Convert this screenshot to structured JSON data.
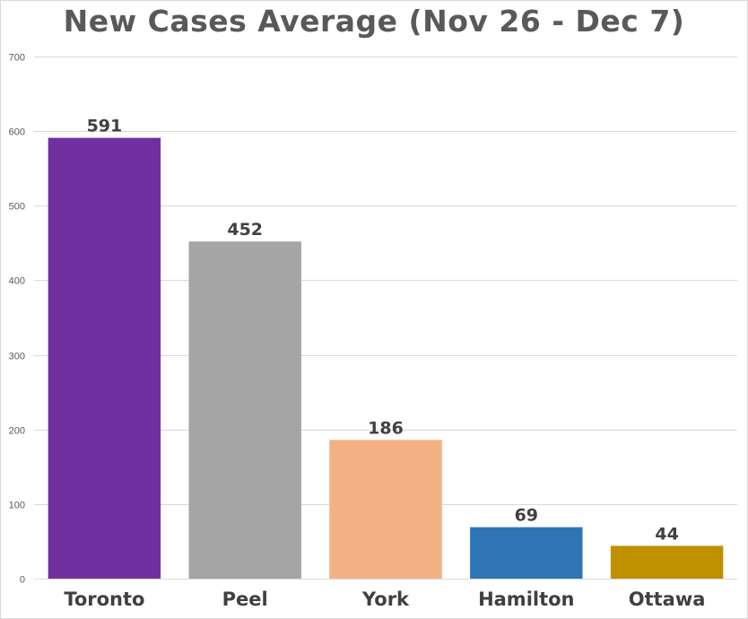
{
  "chart_data": {
    "type": "bar",
    "title": "New Cases Average (Nov 26 - Dec 7)",
    "categories": [
      "Toronto",
      "Peel",
      "York",
      "Hamilton",
      "Ottawa"
    ],
    "values": [
      591,
      452,
      186,
      69,
      44
    ],
    "colors": [
      "#7030a0",
      "#a5a5a5",
      "#f4b183",
      "#2e75b6",
      "#bf9000"
    ],
    "yticks": [
      0,
      100,
      200,
      300,
      400,
      500,
      600,
      700
    ],
    "ylim": [
      0,
      700
    ],
    "xlabel": "",
    "ylabel": "",
    "grid": true,
    "data_labels": true
  }
}
